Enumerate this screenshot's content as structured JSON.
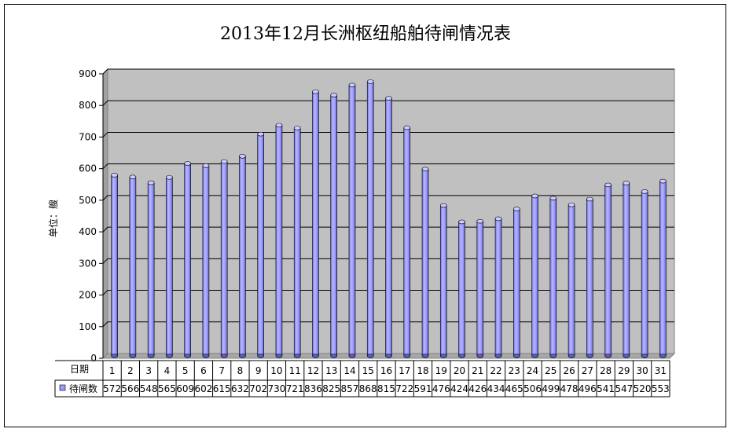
{
  "chart_data": {
    "type": "bar",
    "title": "2013年12月长洲枢纽船舶待闸情况表",
    "ylabel": "单位：艘",
    "table_row_header": "日期",
    "ylim": [
      0,
      900
    ],
    "y_ticks": [
      0,
      100,
      200,
      300,
      400,
      500,
      600,
      700,
      800,
      900
    ],
    "grid": true,
    "legend_placement": "data-table",
    "categories": [
      "1",
      "2",
      "3",
      "4",
      "5",
      "6",
      "7",
      "8",
      "9",
      "10",
      "11",
      "12",
      "13",
      "14",
      "15",
      "16",
      "17",
      "18",
      "19",
      "20",
      "21",
      "22",
      "23",
      "24",
      "25",
      "26",
      "27",
      "28",
      "29",
      "30",
      "31"
    ],
    "series": [
      {
        "name": "待闸数",
        "color": "#9999ff",
        "values": [
          572,
          566,
          548,
          565,
          609,
          602,
          615,
          632,
          702,
          730,
          721,
          836,
          825,
          857,
          868,
          815,
          722,
          591,
          476,
          424,
          426,
          434,
          465,
          506,
          499,
          478,
          496,
          541,
          547,
          520,
          553
        ]
      }
    ],
    "plot_background": "#c0c0c0"
  }
}
